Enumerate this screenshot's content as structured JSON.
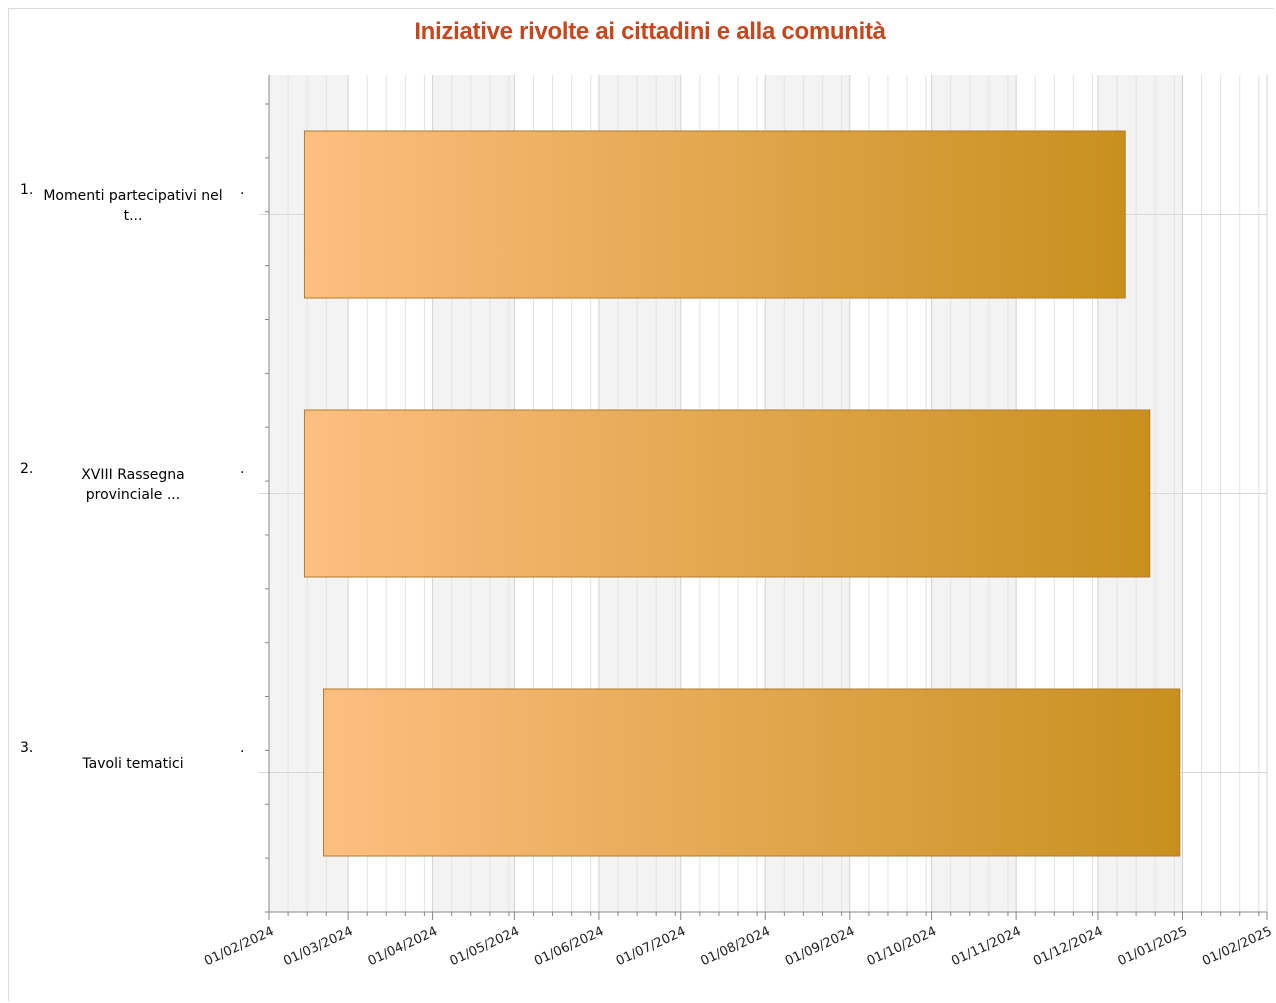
{
  "chart_data": {
    "type": "bar",
    "orientation": "horizontal",
    "chart_style": "gantt",
    "title": "Iniziative rivolte ai cittadini e alla comunità",
    "xlabel": "",
    "ylabel": "",
    "x_axis_type": "date",
    "xlim": [
      "2024-02-01",
      "2025-02-01"
    ],
    "x_tick_labels": [
      "01/02/2024",
      "01/03/2024",
      "01/04/2024",
      "01/05/2024",
      "01/06/2024",
      "01/07/2024",
      "01/08/2024",
      "01/09/2024",
      "01/10/2024",
      "01/11/2024",
      "01/12/2024",
      "01/01/2025",
      "01/02/2025"
    ],
    "grid": true,
    "legend": "none",
    "bar_gradient": [
      "#fdbe80",
      "#c98f1e"
    ],
    "bar_border": "#b07c2a",
    "categories": [
      {
        "number": "1.",
        "label_lines": [
          "Momenti partecipativi nel",
          "t..."
        ],
        "start": "2024-02-14",
        "end": "2024-12-11"
      },
      {
        "number": "2.",
        "label_lines": [
          "XVIII Rassegna",
          "provinciale ..."
        ],
        "start": "2024-02-14",
        "end": "2024-12-20"
      },
      {
        "number": "3.",
        "label_lines": [
          "Tavoli tematici"
        ],
        "start": "2024-02-21",
        "end": "2024-12-31"
      }
    ]
  }
}
